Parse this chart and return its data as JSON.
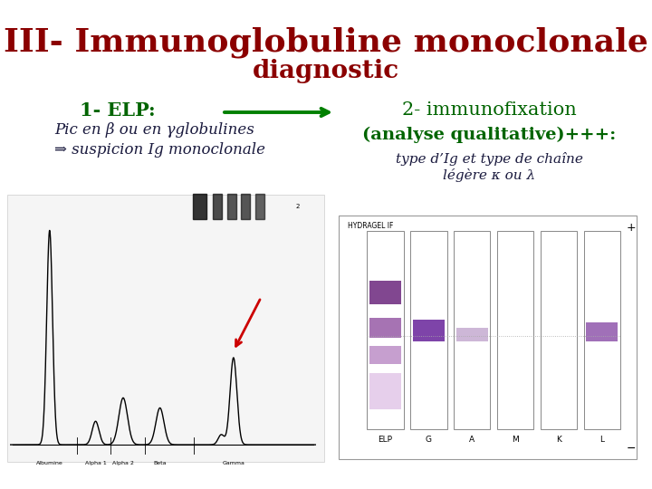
{
  "title_line1": "III- Immunoglobuline monoclonale",
  "title_line2": "diagnostic",
  "title_color": "#8B0000",
  "subtitle_color": "#006400",
  "bg_color": "#FFFFFF",
  "left_heading": "1- ELP:",
  "left_text1": "Pic en β ou en γglobulines",
  "left_text2": "⇒ suspicion Ig monoclonale",
  "right_heading": "2- immunofixation",
  "right_subheading": "(analyse qualitative)+++:",
  "right_text1": "type d’Ig et type de chaîne",
  "right_text2": "légère κ ou λ",
  "arrow_color": "#008000",
  "text_color_green": "#006400",
  "text_color_black": "#1a1a2e",
  "text_color_darkblue": "#1a1a3e"
}
